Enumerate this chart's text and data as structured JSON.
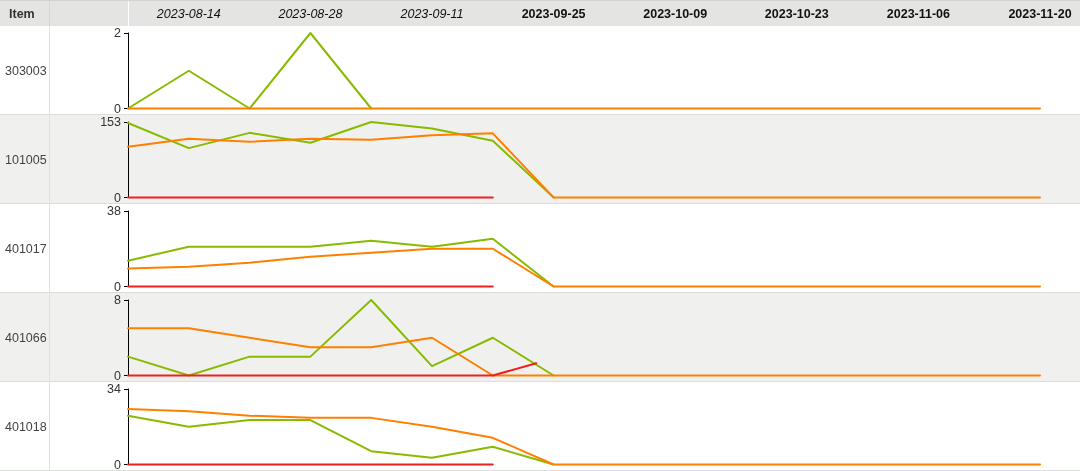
{
  "chart_data": [
    {
      "type": "line",
      "title": "303003",
      "annotations": [
        "Item"
      ],
      "x": [
        "2023-08-07",
        "2023-08-14",
        "2023-08-21",
        "2023-08-28",
        "2023-09-04",
        "2023-09-11",
        "2023-09-18",
        "2023-09-25",
        "2023-10-02",
        "2023-10-09",
        "2023-10-16",
        "2023-10-23",
        "2023-10-30",
        "2023-11-06",
        "2023-11-13",
        "2023-11-20"
      ],
      "xlim": [
        "2023-08-07",
        "2023-11-20"
      ],
      "xticks": [
        "2023-08-14",
        "2023-08-28",
        "2023-09-11",
        "2023-09-25",
        "2023-10-09",
        "2023-10-23",
        "2023-11-06",
        "2023-11-20"
      ],
      "ylim": [
        0,
        2
      ],
      "yticks": [
        0,
        2
      ],
      "marker": "none",
      "line_style": "solid",
      "series": [
        {
          "color": "#88bb00",
          "values": [
            0,
            1,
            0,
            2,
            0,
            null,
            null,
            null,
            null,
            null,
            null,
            null,
            null,
            null,
            null,
            null
          ]
        },
        {
          "color": "#ff7f00",
          "values": [
            0,
            0,
            0,
            0,
            0,
            0,
            0,
            0,
            0,
            0,
            0,
            0,
            0,
            0,
            0,
            0
          ]
        }
      ]
    },
    {
      "type": "line",
      "title": "101005",
      "x": [
        "2023-08-07",
        "2023-08-14",
        "2023-08-21",
        "2023-08-28",
        "2023-09-04",
        "2023-09-11",
        "2023-09-18",
        "2023-09-25",
        "2023-10-02",
        "2023-10-09",
        "2023-10-16",
        "2023-10-23",
        "2023-10-30",
        "2023-11-06",
        "2023-11-13",
        "2023-11-20"
      ],
      "xlim": [
        "2023-08-07",
        "2023-11-20"
      ],
      "ylim": [
        0,
        153
      ],
      "yticks": [
        0,
        153
      ],
      "tick_labels": "y",
      "marker": "none",
      "line_style": "solid",
      "series": [
        {
          "color": "#88bb00",
          "values": [
            151,
            100,
            131,
            111,
            153,
            140,
            115,
            0,
            null,
            null,
            null,
            null,
            null,
            null,
            null,
            null
          ]
        },
        {
          "color": "#ff7f00",
          "values": [
            103,
            119,
            113,
            119,
            117,
            126,
            130,
            0,
            0,
            0,
            0,
            0,
            0,
            0,
            0,
            0
          ]
        },
        {
          "color": "#f02020",
          "values": [
            0,
            0,
            0,
            0,
            0,
            0,
            0,
            null,
            null,
            null,
            null,
            null,
            null,
            null,
            null,
            null
          ]
        }
      ]
    },
    {
      "type": "line",
      "title": "401017",
      "x": [
        "2023-08-07",
        "2023-08-14",
        "2023-08-21",
        "2023-08-28",
        "2023-09-04",
        "2023-09-11",
        "2023-09-18",
        "2023-09-25",
        "2023-10-02",
        "2023-10-09",
        "2023-10-16",
        "2023-10-23",
        "2023-10-30",
        "2023-11-06",
        "2023-11-13",
        "2023-11-20"
      ],
      "xlim": [
        "2023-08-07",
        "2023-11-20"
      ],
      "ylim": [
        0,
        38
      ],
      "yticks": [
        0,
        38
      ],
      "tick_labels": "y",
      "marker": "none",
      "line_style": "solid",
      "series": [
        {
          "color": "#88bb00",
          "values": [
            13,
            20,
            20,
            20,
            23,
            20,
            24,
            0,
            null,
            null,
            null,
            null,
            null,
            null,
            null,
            null
          ]
        },
        {
          "color": "#ff7f00",
          "values": [
            9,
            10,
            12,
            15,
            17,
            19,
            19,
            0,
            0,
            0,
            0,
            0,
            0,
            0,
            0,
            0
          ]
        },
        {
          "color": "#f02020",
          "values": [
            0,
            0,
            0,
            0,
            0,
            0,
            0,
            null,
            null,
            null,
            null,
            null,
            null,
            null,
            null,
            null
          ]
        }
      ]
    },
    {
      "type": "line",
      "title": "401066",
      "x": [
        "2023-08-07",
        "2023-08-14",
        "2023-08-21",
        "2023-08-28",
        "2023-09-04",
        "2023-09-11",
        "2023-09-18",
        "2023-09-25",
        "2023-10-02",
        "2023-10-09",
        "2023-10-16",
        "2023-10-23",
        "2023-10-30",
        "2023-11-06",
        "2023-11-13",
        "2023-11-20"
      ],
      "xlim": [
        "2023-08-07",
        "2023-11-20"
      ],
      "ylim": [
        0,
        8
      ],
      "yticks": [
        0,
        8
      ],
      "tick_labels": "y",
      "marker": "none",
      "line_style": "solid",
      "series": [
        {
          "color": "#88bb00",
          "values": [
            2,
            0,
            2,
            2,
            8,
            1,
            4,
            0,
            null,
            null,
            null,
            null,
            null,
            null,
            null,
            null
          ]
        },
        {
          "color": "#ff7f00",
          "values": [
            5,
            5,
            4,
            3,
            3,
            4,
            0,
            0,
            0,
            0,
            0,
            0,
            0,
            0,
            0,
            0
          ]
        },
        {
          "color": "#f02020",
          "x": [
            "2023-08-07",
            "2023-08-14",
            "2023-08-21",
            "2023-08-28",
            "2023-09-04",
            "2023-09-11",
            "2023-09-18",
            "2023-09-23"
          ],
          "values": [
            0,
            0,
            0,
            0,
            0,
            0,
            0,
            1.3
          ]
        }
      ]
    },
    {
      "type": "line",
      "title": "401018",
      "x": [
        "2023-08-07",
        "2023-08-14",
        "2023-08-21",
        "2023-08-28",
        "2023-09-04",
        "2023-09-11",
        "2023-09-18",
        "2023-09-25",
        "2023-10-02",
        "2023-10-09",
        "2023-10-16",
        "2023-10-23",
        "2023-10-30",
        "2023-11-06",
        "2023-11-13",
        "2023-11-20"
      ],
      "xlim": [
        "2023-08-07",
        "2023-11-20"
      ],
      "ylim": [
        0,
        34
      ],
      "yticks": [
        0,
        34
      ],
      "tick_labels": "y",
      "marker": "none",
      "line_style": "solid",
      "series": [
        {
          "color": "#88bb00",
          "values": [
            22,
            17,
            20,
            20,
            6,
            3,
            8,
            0,
            null,
            null,
            null,
            null,
            null,
            null,
            null,
            null
          ]
        },
        {
          "color": "#ff7f00",
          "values": [
            25,
            24,
            22,
            21,
            21,
            17,
            12,
            0,
            0,
            0,
            0,
            0,
            0,
            0,
            0,
            0
          ]
        },
        {
          "color": "#f02020",
          "values": [
            0,
            0,
            0,
            0,
            0,
            0,
            0,
            null,
            null,
            null,
            null,
            null,
            null,
            null,
            null,
            null
          ]
        }
      ]
    }
  ]
}
